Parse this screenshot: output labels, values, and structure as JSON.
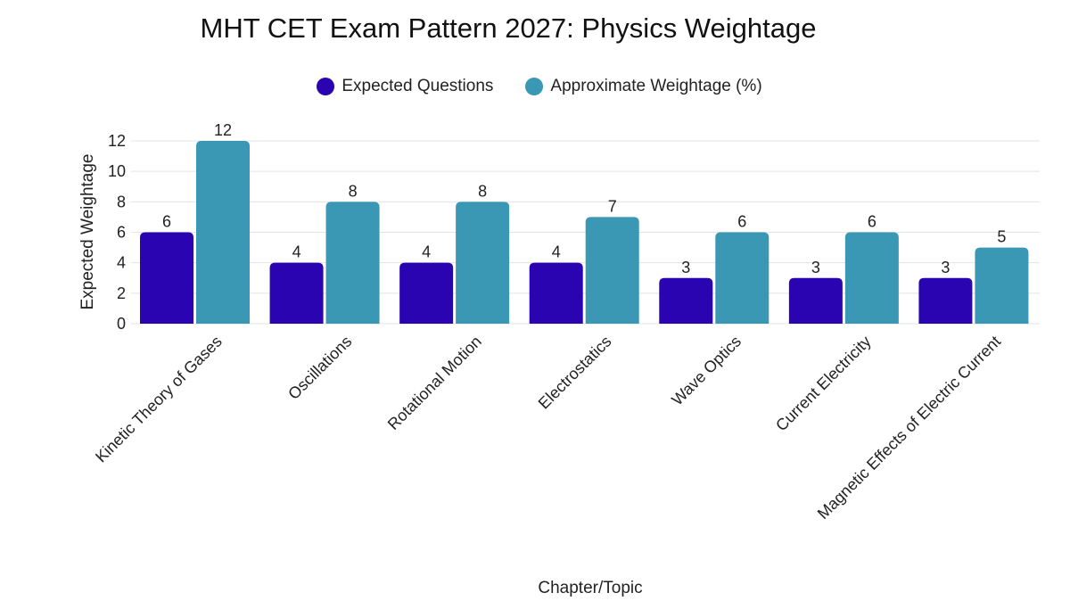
{
  "chart_data": {
    "type": "bar",
    "title": "MHT CET Exam Pattern 2027: Physics Weightage",
    "xlabel": "Chapter/Topic",
    "ylabel": "Expected Weightage",
    "ylim": [
      0,
      12
    ],
    "yticks": [
      0,
      2,
      4,
      6,
      8,
      10,
      12
    ],
    "grid": true,
    "legend_position": "top-center",
    "categories": [
      "Kinetic Theory of Gases",
      "Oscillations",
      "Rotational Motion",
      "Electrostatics",
      "Wave Optics",
      "Current Electricity",
      "Magnetic Effects of Electric Current"
    ],
    "series": [
      {
        "name": "Expected Questions",
        "color": "#2a04b0",
        "values": [
          6,
          4,
          4,
          4,
          3,
          3,
          3
        ]
      },
      {
        "name": "Approximate Weightage (%)",
        "color": "#3a98b4",
        "values": [
          12,
          8,
          8,
          7,
          6,
          6,
          5
        ]
      }
    ]
  }
}
